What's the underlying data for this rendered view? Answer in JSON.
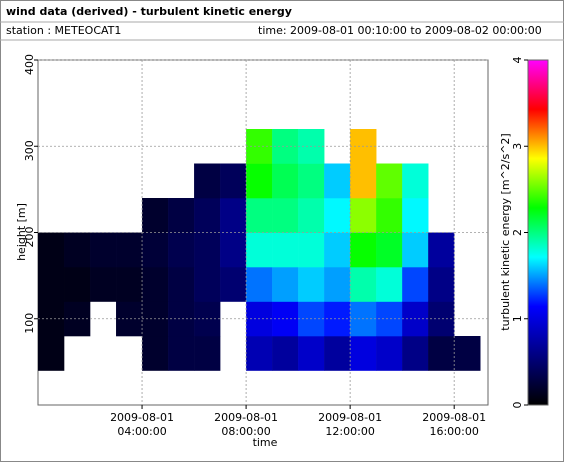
{
  "chart_data": {
    "type": "heatmap",
    "title": "wind data (derived) - turbulent kinetic energy",
    "station": "station : METEOCAT1",
    "time_range": "time: 2009-08-01 00:10:00 to 2009-08-02 00:00:00",
    "x_label": "time",
    "y_label": "height [m]",
    "colorbar_label": "turbulent kinetic energy [m^2/s^2]",
    "xbins": [
      0,
      1,
      2,
      3,
      4,
      5,
      6,
      7,
      8,
      9,
      10,
      11,
      12,
      13,
      14,
      15,
      16,
      17
    ],
    "ybins": [
      40,
      80,
      120,
      160,
      200,
      240,
      280,
      320
    ],
    "values": [
      [
        0.1,
        0.1,
        0.1,
        0.1,
        null,
        null,
        null
      ],
      [
        null,
        0.15,
        0.1,
        0.15,
        null,
        null,
        null
      ],
      [
        null,
        null,
        0.15,
        0.2,
        null,
        null,
        null
      ],
      [
        null,
        0.2,
        0.15,
        0.2,
        null,
        null,
        null
      ],
      [
        0.2,
        0.2,
        0.2,
        0.25,
        0.2,
        null,
        null
      ],
      [
        0.3,
        0.3,
        0.3,
        0.35,
        0.3,
        null,
        null
      ],
      [
        0.3,
        0.35,
        0.4,
        0.4,
        0.4,
        0.3,
        null
      ],
      [
        null,
        null,
        0.5,
        0.6,
        0.6,
        0.4,
        null
      ],
      [
        0.8,
        1.0,
        1.4,
        1.8,
        2.0,
        2.3,
        2.4
      ],
      [
        0.7,
        1.1,
        1.5,
        1.8,
        2.0,
        2.1,
        2.0
      ],
      [
        0.9,
        1.3,
        1.6,
        1.8,
        1.9,
        2.0,
        1.9
      ],
      [
        0.7,
        1.2,
        1.5,
        1.6,
        1.7,
        1.6,
        null
      ],
      [
        1.0,
        1.4,
        1.9,
        2.3,
        2.6,
        3.0,
        3.0
      ],
      [
        0.9,
        1.3,
        1.8,
        2.2,
        2.4,
        2.5,
        null
      ],
      [
        0.6,
        0.9,
        1.3,
        1.6,
        1.7,
        1.8,
        null
      ],
      [
        0.3,
        0.5,
        0.6,
        0.7,
        null,
        null,
        null
      ],
      [
        0.3,
        null,
        null,
        null,
        null,
        null,
        null
      ]
    ],
    "xlim": [
      0,
      17.3
    ],
    "xticks": [
      {
        "value": 4,
        "label": [
          "2009-08-01",
          "04:00:00"
        ]
      },
      {
        "value": 8,
        "label": [
          "2009-08-01",
          "08:00:00"
        ]
      },
      {
        "value": 12,
        "label": [
          "2009-08-01",
          "12:00:00"
        ]
      },
      {
        "value": 16,
        "label": [
          "2009-08-01",
          "16:00:00"
        ]
      }
    ],
    "ylim": [
      0,
      400
    ],
    "yticks": [
      100,
      200,
      300,
      400
    ],
    "clim": [
      0,
      4
    ],
    "cticks": [
      0,
      1,
      2,
      3,
      4
    ],
    "colorscale": [
      "#000000",
      "#000080",
      "#0000ff",
      "#00ffff",
      "#00ff00",
      "#ffff00",
      "#ff0000",
      "#ff00ff"
    ],
    "grid": true
  }
}
